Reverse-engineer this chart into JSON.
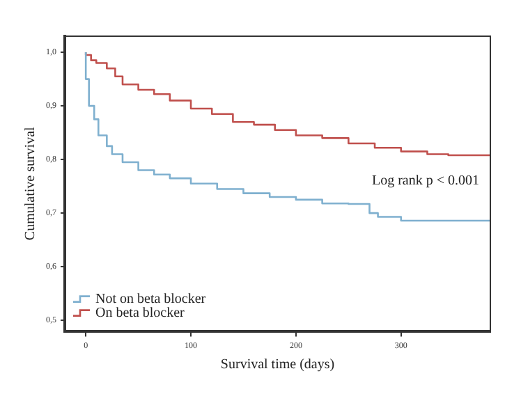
{
  "chart_data": {
    "type": "step",
    "xlabel": "Survival time (days)",
    "ylabel": "Cumulative survival",
    "xlim": [
      -20,
      385
    ],
    "xticks": [
      0,
      100,
      200,
      300
    ],
    "ylim": [
      0.48,
      1.03
    ],
    "yticks": [
      {
        "value": 0.5,
        "label": "0,5"
      },
      {
        "value": 0.6,
        "label": "0,6"
      },
      {
        "value": 0.7,
        "label": "0,7"
      },
      {
        "value": 0.8,
        "label": "0,8"
      },
      {
        "value": 0.9,
        "label": "0,9"
      },
      {
        "value": 1.0,
        "label": "1,0"
      }
    ],
    "grid": false,
    "legend": "bottom left",
    "marker": "none",
    "line_style": "solid",
    "annotations": [
      "Log rank p < 0.001"
    ],
    "series": [
      {
        "name": "Not on beta blocker",
        "color": "#7fb0cf",
        "x": [
          0,
          3,
          8,
          12,
          20,
          25,
          35,
          50,
          65,
          80,
          100,
          125,
          150,
          175,
          200,
          225,
          250,
          270,
          278,
          300,
          322,
          340,
          385
        ],
        "values": [
          1.0,
          0.95,
          0.9,
          0.875,
          0.845,
          0.825,
          0.81,
          0.795,
          0.78,
          0.772,
          0.765,
          0.755,
          0.745,
          0.737,
          0.73,
          0.725,
          0.718,
          0.717,
          0.7,
          0.693,
          0.686,
          0.686,
          0.686
        ]
      },
      {
        "name": "On beta blocker",
        "color": "#c0504d",
        "x": [
          0,
          5,
          10,
          20,
          28,
          35,
          50,
          65,
          80,
          100,
          120,
          140,
          160,
          180,
          200,
          225,
          250,
          275,
          300,
          325,
          345,
          385
        ],
        "values": [
          1.0,
          0.995,
          0.985,
          0.98,
          0.97,
          0.955,
          0.94,
          0.93,
          0.922,
          0.91,
          0.895,
          0.885,
          0.87,
          0.865,
          0.855,
          0.845,
          0.84,
          0.83,
          0.822,
          0.815,
          0.81,
          0.808
        ]
      }
    ]
  }
}
